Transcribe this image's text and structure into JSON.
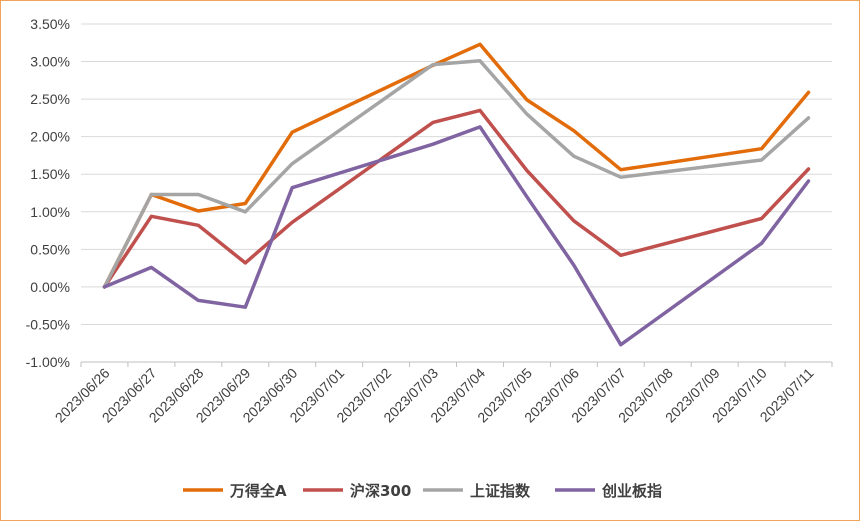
{
  "chart_data": {
    "type": "line",
    "categories": [
      "2023/06/26",
      "2023/06/27",
      "2023/06/28",
      "2023/06/29",
      "2023/06/30",
      "2023/07/01",
      "2023/07/02",
      "2023/07/03",
      "2023/07/04",
      "2023/07/05",
      "2023/07/06",
      "2023/07/07",
      "2023/07/08",
      "2023/07/09",
      "2023/07/10",
      "2023/07/11"
    ],
    "y_tick_labels": [
      "3.50%",
      "3.00%",
      "2.50%",
      "2.00%",
      "1.50%",
      "1.00%",
      "0.50%",
      "0.00%",
      "-0.50%",
      "-1.00%"
    ],
    "ylim": [
      -1.0,
      3.5
    ],
    "y_unit": "%",
    "grid": "horizontal",
    "legend_position": "bottom",
    "series": [
      {
        "name": "万得全A",
        "color": "#e36c0a",
        "points": [
          [
            "2023/06/26",
            0.0
          ],
          [
            "2023/06/27",
            1.23
          ],
          [
            "2023/06/28",
            1.01
          ],
          [
            "2023/06/29",
            1.11
          ],
          [
            "2023/06/30",
            2.06
          ],
          [
            "2023/07/03",
            2.95
          ],
          [
            "2023/07/04",
            3.23
          ],
          [
            "2023/07/05",
            2.49
          ],
          [
            "2023/07/06",
            2.08
          ],
          [
            "2023/07/07",
            1.56
          ],
          [
            "2023/07/10",
            1.84
          ],
          [
            "2023/07/11",
            2.59
          ]
        ]
      },
      {
        "name": "沪深300",
        "color": "#c0504d",
        "points": [
          [
            "2023/06/26",
            0.0
          ],
          [
            "2023/06/27",
            0.94
          ],
          [
            "2023/06/28",
            0.82
          ],
          [
            "2023/06/29",
            0.32
          ],
          [
            "2023/06/30",
            0.86
          ],
          [
            "2023/07/03",
            2.19
          ],
          [
            "2023/07/04",
            2.35
          ],
          [
            "2023/07/05",
            1.55
          ],
          [
            "2023/07/06",
            0.88
          ],
          [
            "2023/07/07",
            0.42
          ],
          [
            "2023/07/10",
            0.91
          ],
          [
            "2023/07/11",
            1.57
          ]
        ]
      },
      {
        "name": "上证指数",
        "color": "#a5a5a5",
        "points": [
          [
            "2023/06/26",
            0.0
          ],
          [
            "2023/06/27",
            1.23
          ],
          [
            "2023/06/28",
            1.23
          ],
          [
            "2023/06/29",
            1.0
          ],
          [
            "2023/06/30",
            1.64
          ],
          [
            "2023/07/03",
            2.96
          ],
          [
            "2023/07/04",
            3.01
          ],
          [
            "2023/07/05",
            2.3
          ],
          [
            "2023/07/06",
            1.74
          ],
          [
            "2023/07/07",
            1.46
          ],
          [
            "2023/07/10",
            1.69
          ],
          [
            "2023/07/11",
            2.25
          ]
        ]
      },
      {
        "name": "创业板指",
        "color": "#8064a2",
        "points": [
          [
            "2023/06/26",
            0.0
          ],
          [
            "2023/06/27",
            0.26
          ],
          [
            "2023/06/28",
            -0.18
          ],
          [
            "2023/06/29",
            -0.27
          ],
          [
            "2023/06/30",
            1.32
          ],
          [
            "2023/07/03",
            1.9
          ],
          [
            "2023/07/04",
            2.13
          ],
          [
            "2023/07/05",
            1.2
          ],
          [
            "2023/07/06",
            0.29
          ],
          [
            "2023/07/07",
            -0.77
          ],
          [
            "2023/07/10",
            0.58
          ],
          [
            "2023/07/11",
            1.41
          ]
        ]
      }
    ]
  }
}
